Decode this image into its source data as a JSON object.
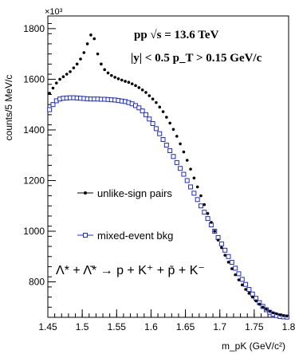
{
  "chart_data": {
    "type": "scatter",
    "ylabel": "counts/5 MeV/c",
    "xlabel": "m_pK (GeV/c²)",
    "y_multiplier": "×10³",
    "xlim": [
      1.45,
      1.8
    ],
    "ylim": [
      660,
      1850
    ],
    "x_ticks": [
      "1.45",
      "1.5",
      "1.55",
      "1.6",
      "1.65",
      "1.7",
      "1.75",
      "1.8"
    ],
    "y_ticks": [
      "800",
      "1000",
      "1200",
      "1400",
      "1600",
      "1800"
    ],
    "annotations": {
      "line1": "pp  √s = 13.6 TeV",
      "line2": "|y| < 0.5   p_T > 0.15 GeV/c",
      "decay": "Λ* + Λ̄* → p + K⁺ + p̄ + K⁻"
    },
    "legend": [
      {
        "label": "unlike-sign pairs",
        "color": "#000000",
        "marker": "filled-circle"
      },
      {
        "label": "mixed-event bkg",
        "color": "#1f2bd6",
        "marker": "open-square"
      }
    ],
    "series": [
      {
        "name": "unlike-sign pairs",
        "color": "#000000",
        "x": [
          1.4525,
          1.4575,
          1.4625,
          1.4675,
          1.4725,
          1.4775,
          1.4825,
          1.4875,
          1.4925,
          1.4975,
          1.5025,
          1.5075,
          1.5125,
          1.5175,
          1.5225,
          1.5275,
          1.5325,
          1.5375,
          1.5425,
          1.5475,
          1.5525,
          1.5575,
          1.5625,
          1.5675,
          1.5725,
          1.5775,
          1.5825,
          1.5875,
          1.5925,
          1.5975,
          1.6025,
          1.6075,
          1.6125,
          1.6175,
          1.6225,
          1.6275,
          1.6325,
          1.6375,
          1.6425,
          1.6475,
          1.6525,
          1.6575,
          1.6625,
          1.6675,
          1.6725,
          1.6775,
          1.6825,
          1.6875,
          1.6925,
          1.6975,
          1.7025,
          1.7075,
          1.7125,
          1.7175,
          1.7225,
          1.7275,
          1.7325,
          1.7375,
          1.7425,
          1.7475,
          1.7525,
          1.7575,
          1.7625,
          1.7675,
          1.7725,
          1.7775,
          1.7825,
          1.7875,
          1.7925,
          1.7975
        ],
        "values": [
          1545,
          1565,
          1585,
          1600,
          1610,
          1620,
          1630,
          1645,
          1660,
          1680,
          1705,
          1740,
          1775,
          1760,
          1700,
          1660,
          1638,
          1625,
          1615,
          1608,
          1602,
          1597,
          1592,
          1588,
          1582,
          1575,
          1567,
          1558,
          1548,
          1535,
          1522,
          1508,
          1490,
          1472,
          1450,
          1427,
          1402,
          1375,
          1345,
          1313,
          1280,
          1245,
          1210,
          1175,
          1140,
          1105,
          1070,
          1035,
          1000,
          965,
          935,
          905,
          878,
          852,
          828,
          808,
          788,
          770,
          755,
          740,
          725,
          712,
          700,
          692,
          684,
          678,
          674,
          670,
          667,
          665
        ]
      },
      {
        "name": "mixed-event bkg",
        "color": "#1f2bd6",
        "x": [
          1.4525,
          1.4575,
          1.4625,
          1.4675,
          1.4725,
          1.4775,
          1.4825,
          1.4875,
          1.4925,
          1.4975,
          1.5025,
          1.5075,
          1.5125,
          1.5175,
          1.5225,
          1.5275,
          1.5325,
          1.5375,
          1.5425,
          1.5475,
          1.5525,
          1.5575,
          1.5625,
          1.5675,
          1.5725,
          1.5775,
          1.5825,
          1.5875,
          1.5925,
          1.5975,
          1.6025,
          1.6075,
          1.6125,
          1.6175,
          1.6225,
          1.6275,
          1.6325,
          1.6375,
          1.6425,
          1.6475,
          1.6525,
          1.6575,
          1.6625,
          1.6675,
          1.6725,
          1.6775,
          1.6825,
          1.6875,
          1.6925,
          1.6975,
          1.7025,
          1.7075,
          1.7125,
          1.7175,
          1.7225,
          1.7275,
          1.7325,
          1.7375,
          1.7425,
          1.7475,
          1.7525,
          1.7575,
          1.7625,
          1.7675,
          1.7725,
          1.7775,
          1.7825,
          1.7875,
          1.7925,
          1.7975
        ],
        "values": [
          1480,
          1500,
          1515,
          1522,
          1525,
          1526,
          1527,
          1527,
          1526,
          1525,
          1524,
          1523,
          1522,
          1522,
          1522,
          1521,
          1521,
          1520,
          1519,
          1518,
          1516,
          1514,
          1512,
          1508,
          1503,
          1496,
          1487,
          1475,
          1460,
          1443,
          1425,
          1405,
          1385,
          1362,
          1340,
          1318,
          1295,
          1271,
          1248,
          1225,
          1200,
          1175,
          1150,
          1125,
          1100,
          1075,
          1050,
          1025,
          1000,
          975,
          950,
          925,
          900,
          877,
          854,
          832,
          810,
          790,
          770,
          752,
          735,
          718,
          703,
          690,
          680,
          672,
          667,
          663,
          662,
          661
        ]
      }
    ]
  }
}
